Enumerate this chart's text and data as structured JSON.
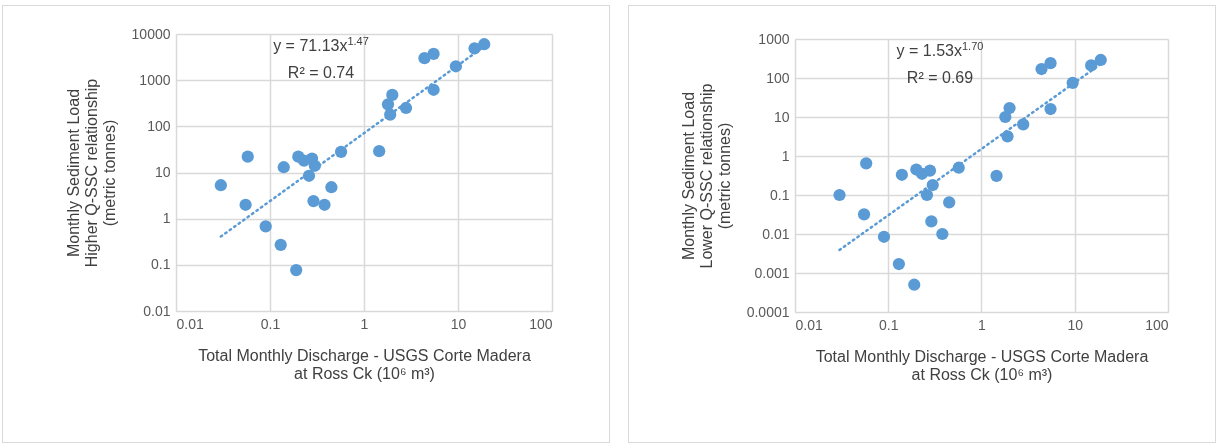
{
  "chart_data": [
    {
      "type": "scatter",
      "xlabel": "Total Monthly Discharge - USGS Corte Madera\nat Ross Ck (10⁶ m³)",
      "ylabel": "Monthly Sediment Load\nHigher Q-SSC relationship\n(metric tonnes)",
      "log": "xy",
      "grid": true,
      "marker": "circle",
      "xlim": [
        0.01,
        100
      ],
      "xticks": [
        0.01,
        0.1,
        1,
        10,
        100
      ],
      "ylim": [
        0.01,
        10000
      ],
      "yticks": [
        0.01,
        0.1,
        1,
        10,
        100,
        1000,
        10000
      ],
      "annotations": [
        "y = 71.13x$^{1.47}$",
        "R² = 0.74"
      ],
      "series": [
        {
          "color": "#5b9bd5",
          "x": [
            0.03,
            0.058,
            0.055,
            0.09,
            0.13,
            0.14,
            0.19,
            0.2,
            0.23,
            0.26,
            0.28,
            0.3,
            0.29,
            0.38,
            0.45,
            0.57,
            1.45,
            1.9,
            1.8,
            2.0,
            2.8,
            4.4,
            5.5,
            5.5,
            9.5,
            15,
            19
          ],
          "values": [
            5.3,
            22,
            2,
            0.68,
            0.27,
            13,
            0.077,
            22,
            18,
            8.5,
            20,
            14,
            2.4,
            2,
            4.8,
            28,
            29,
            180,
            300,
            480,
            250,
            3000,
            3700,
            620,
            2000,
            4900,
            6000
          ]
        },
        {
          "type": "line",
          "line_style": "dotted",
          "marker": "none",
          "color": "#5b9bd5",
          "x": [
            0.03,
            19
          ],
          "values": [
            0.41,
            5390
          ]
        }
      ]
    },
    {
      "type": "scatter",
      "xlabel": "Total Monthly Discharge - USGS Corte Madera\nat Ross Ck (10⁶ m³)",
      "ylabel": "Monthly Sediment Load\nLower Q-SSC relationship\n(metric tonnes)",
      "log": "xy",
      "grid": true,
      "marker": "circle",
      "xlim": [
        0.01,
        100
      ],
      "xticks": [
        0.01,
        0.1,
        1,
        10,
        100
      ],
      "ylim": [
        0.0001,
        1000
      ],
      "yticks": [
        0.0001,
        0.001,
        0.01,
        0.1,
        1,
        10,
        100,
        1000
      ],
      "annotations": [
        "y = 1.53x$^{1.70}$",
        "R² = 0.69"
      ],
      "series": [
        {
          "color": "#5b9bd5",
          "x": [
            0.03,
            0.058,
            0.055,
            0.09,
            0.13,
            0.14,
            0.19,
            0.2,
            0.23,
            0.26,
            0.28,
            0.3,
            0.29,
            0.38,
            0.45,
            0.57,
            1.45,
            1.9,
            1.8,
            2.0,
            2.8,
            4.4,
            5.5,
            5.5,
            9.5,
            15,
            19
          ],
          "values": [
            0.1,
            0.65,
            0.032,
            0.0085,
            0.0017,
            0.33,
            0.0005,
            0.45,
            0.35,
            0.1,
            0.42,
            0.18,
            0.021,
            0.01,
            0.065,
            0.5,
            0.31,
            3.2,
            10,
            17,
            6.5,
            170,
            240,
            16,
            75,
            210,
            290
          ]
        },
        {
          "type": "line",
          "line_style": "dotted",
          "marker": "none",
          "color": "#5b9bd5",
          "x": [
            0.03,
            19
          ],
          "values": [
            0.0039,
            228
          ]
        }
      ]
    }
  ]
}
